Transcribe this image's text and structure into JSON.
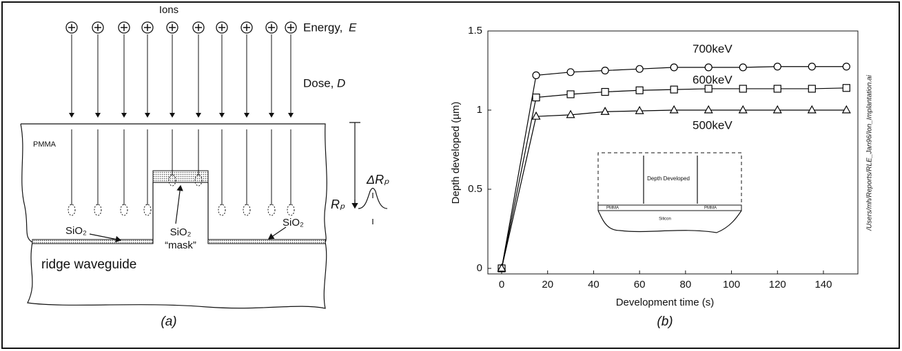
{
  "diagram": {
    "ions": "Ions",
    "energy_label": "Energy,",
    "energy_symbol": "E",
    "dose_label": "Dose,",
    "dose_symbol": "D",
    "pmma": "PMMA",
    "sio2_left": "SiO₂",
    "sio2_mask": "SiO₂",
    "mask": "“mask”",
    "sio2_right": "SiO₂",
    "ridge": "ridge waveguide",
    "rp": "Rₚ",
    "delta_rp": "ΔRₚ",
    "caption": "(a)"
  },
  "chart_data": {
    "type": "line",
    "caption": "(b)",
    "x_label": "Development time (s)",
    "y_label": "Depth developed (µm)",
    "side_note": "/Users/mh/Reports/RLE_Jan96/Ion_Implantation.ai",
    "x": [
      0,
      15,
      30,
      45,
      60,
      75,
      90,
      105,
      120,
      135,
      150
    ],
    "series": [
      {
        "name": "700keV",
        "color": "#000000",
        "marker": "circle",
        "values": [
          0,
          1.22,
          1.24,
          1.25,
          1.26,
          1.27,
          1.27,
          1.27,
          1.275,
          1.275,
          1.275
        ]
      },
      {
        "name": "600keV",
        "color": "#000000",
        "marker": "square",
        "values": [
          0,
          1.08,
          1.1,
          1.115,
          1.125,
          1.13,
          1.135,
          1.135,
          1.135,
          1.135,
          1.14
        ]
      },
      {
        "name": "500keV",
        "color": "#000000",
        "marker": "triangle",
        "values": [
          0,
          0.96,
          0.97,
          0.99,
          0.995,
          1.0,
          1.0,
          1.0,
          1.0,
          1.0,
          1.0
        ]
      }
    ],
    "xlim": [
      -6,
      155
    ],
    "ylim": [
      -0.035,
      1.5
    ],
    "xticks": [
      0,
      20,
      40,
      60,
      80,
      100,
      120,
      140
    ],
    "yticks": [
      0,
      0.5,
      1,
      1.5
    ],
    "inset": {
      "depth": "Depth Developed",
      "pmma_left": "PMMA",
      "pmma_right": "PMMA",
      "silicon": "Silicon"
    }
  }
}
